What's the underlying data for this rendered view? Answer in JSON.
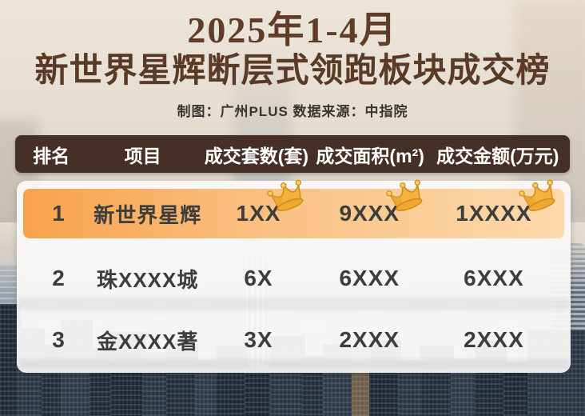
{
  "title": {
    "line1": "2025年1-4月",
    "line2": "新世界星辉断层式领跑板块成交榜",
    "credit": "制图：广州PLUS  数据来源：中指院"
  },
  "chart_data": {
    "type": "table",
    "title": "2025年1-4月 新世界星辉断层式领跑板块成交榜",
    "columns": [
      "排名",
      "项目",
      "成交套数(套)",
      "成交面积(m²)",
      "成交金额(万元)"
    ],
    "rows": [
      [
        "1",
        "新世界星辉",
        "1XX",
        "9XXX",
        "1XXXX"
      ],
      [
        "2",
        "珠XXXX城",
        "6X",
        "6XXX",
        "6XXX"
      ],
      [
        "3",
        "金XXXX著",
        "3X",
        "2XXX",
        "2XXX"
      ]
    ],
    "highlight_row": 1,
    "crown_columns_on_row1": [
      "成交套数(套)",
      "成交面积(m²)",
      "成交金额(万元)"
    ]
  },
  "icons": {
    "crown": "crown-icon"
  },
  "colors": {
    "title_brown": "#5f3d27",
    "header_bar": "#452f27",
    "header_text": "#ffffff",
    "highlight_start": "#f7a24a",
    "highlight_end": "#fcd9ac",
    "panel": "#faf9f8",
    "body_text": "#3d3d3d",
    "crown_gold": "#f5b33c"
  }
}
